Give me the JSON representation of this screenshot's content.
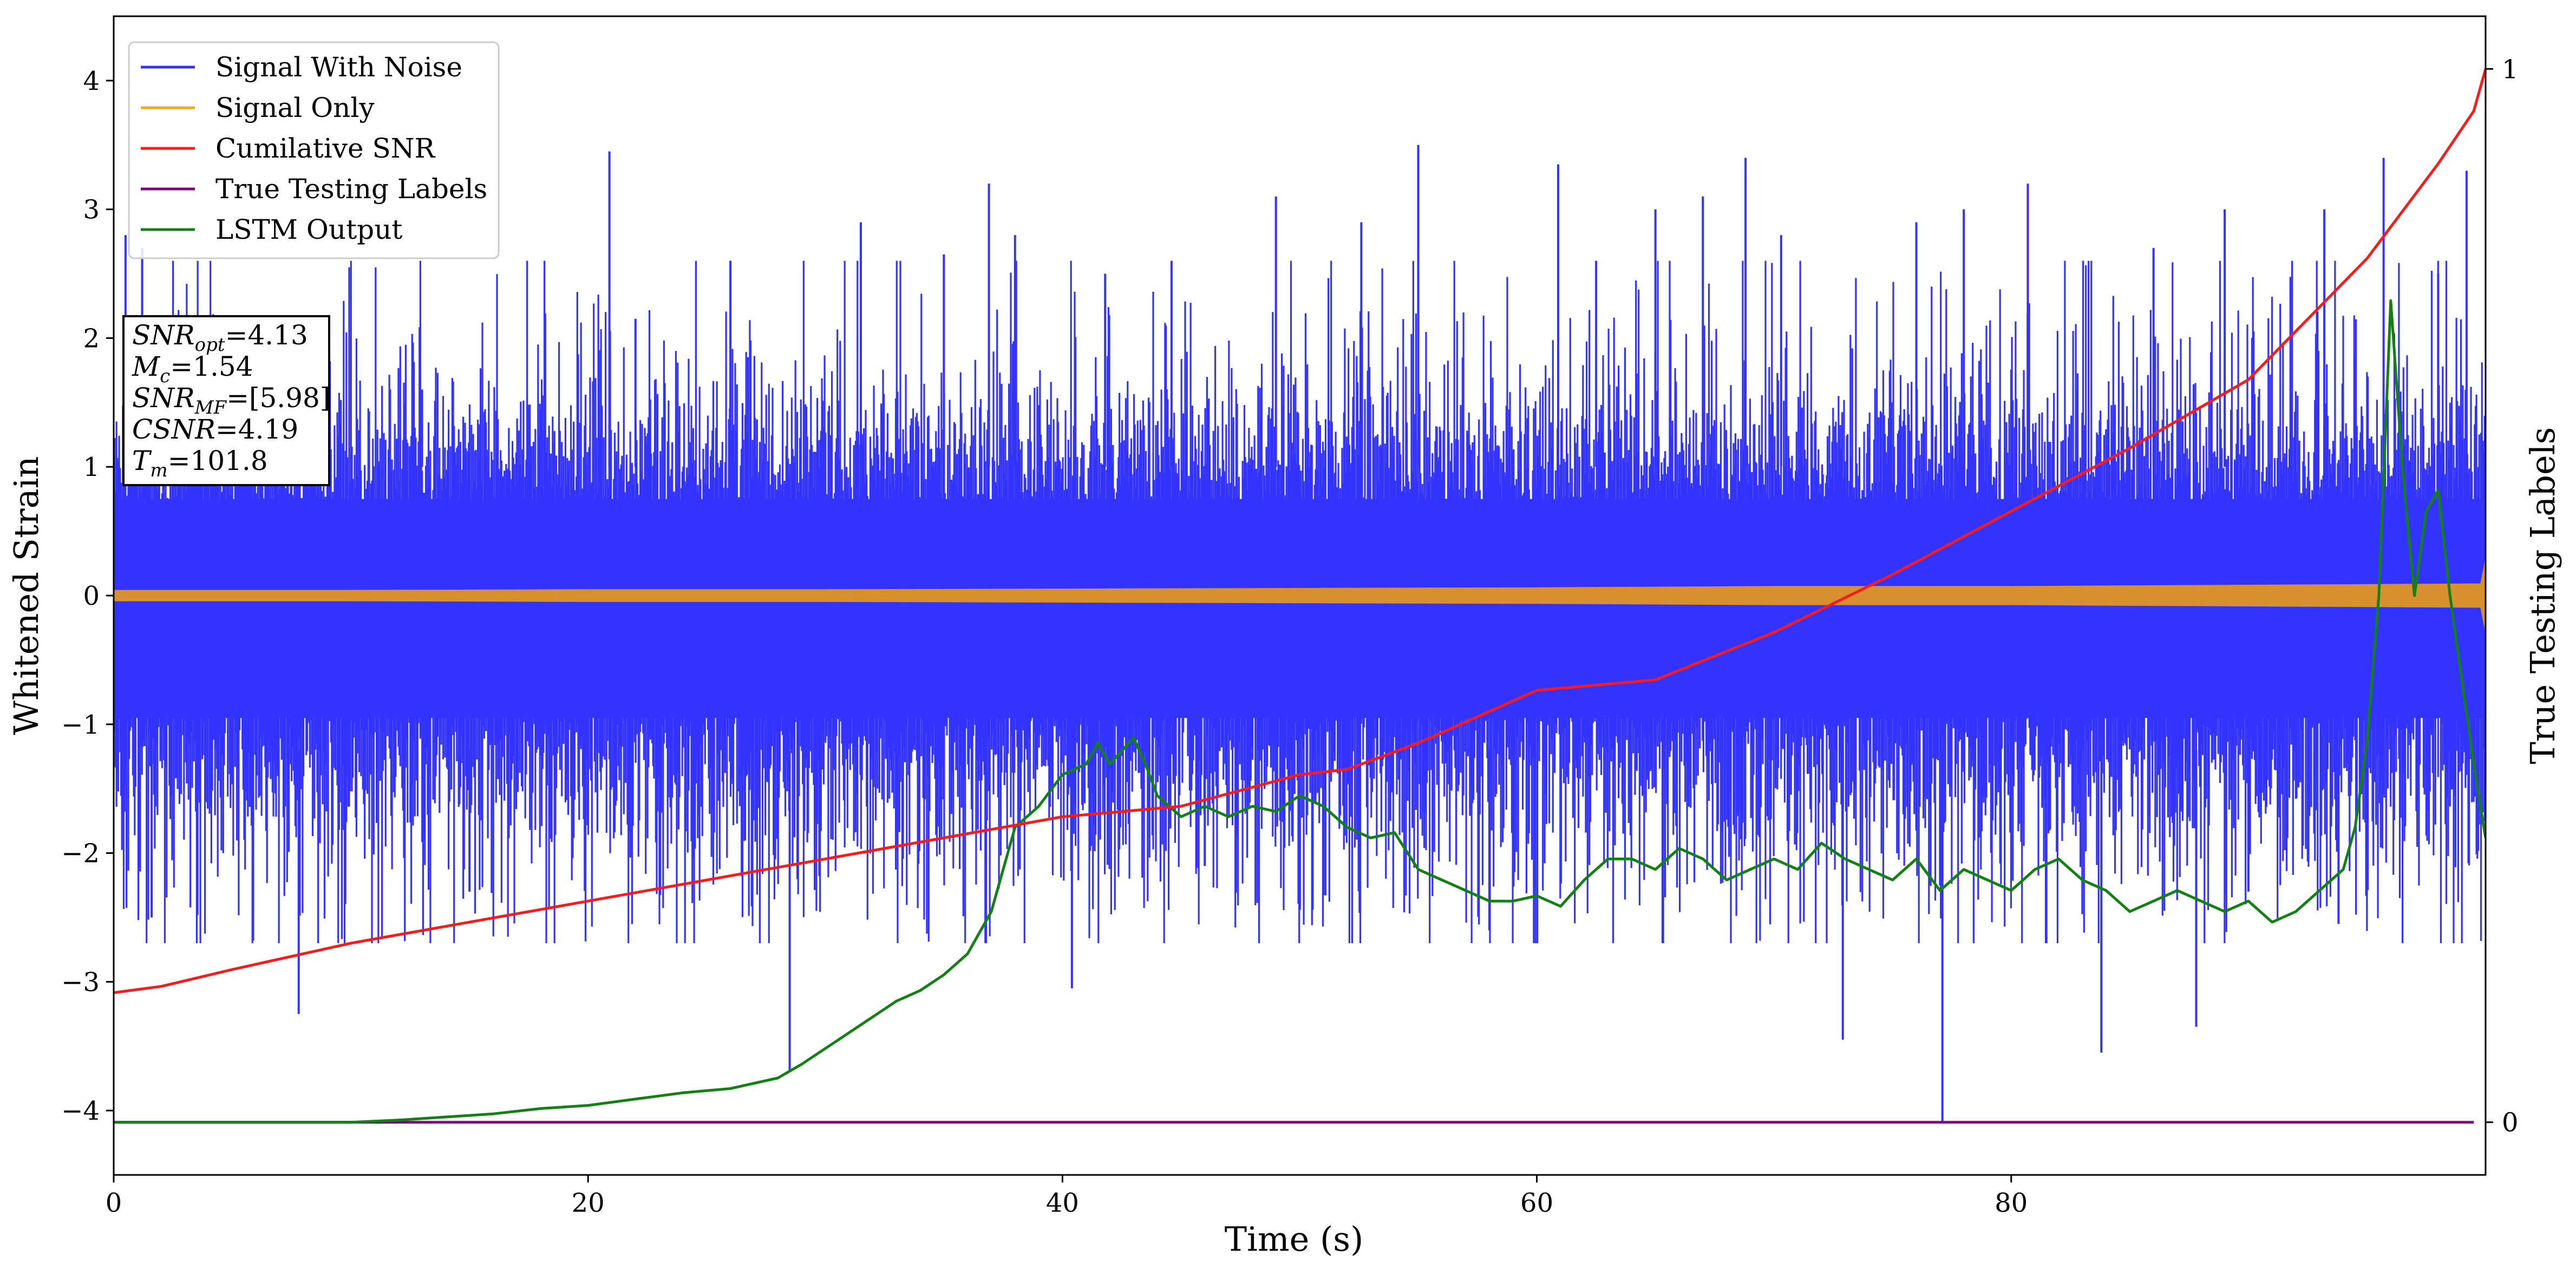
{
  "colors": {
    "noise": "#3333ff",
    "signal": "#d88f2e",
    "csnr": "#ff1a1a",
    "labels": "#800080",
    "lstm": "#138013"
  },
  "chart_data": {
    "type": "line",
    "xlabel": "Time (s)",
    "ylabel": "Whitened Strain",
    "y2label": "True Testing Labels",
    "xlim": [
      0,
      100
    ],
    "ylim": [
      -4.5,
      4.5
    ],
    "y2lim": [
      -0.05,
      1.05
    ],
    "xticks": [
      0,
      20,
      40,
      60,
      80
    ],
    "yticks": [
      -4,
      -3,
      -2,
      -1,
      0,
      1,
      2,
      3,
      4
    ],
    "y2ticks": [
      0,
      1
    ],
    "grid": false,
    "legend_position": "top-left",
    "legend": [
      {
        "name": "Signal With Noise",
        "color": "#3333ff"
      },
      {
        "name": "Signal Only",
        "color": "#f5a623"
      },
      {
        "name": "Cumilative SNR",
        "color": "#ff1a1a"
      },
      {
        "name": "True Testing Labels",
        "color": "#800080"
      },
      {
        "name": "LSTM Output",
        "color": "#138013"
      }
    ],
    "series": [
      {
        "name": "Signal With Noise",
        "axis": "left",
        "style": "dense noise band",
        "envelope": {
          "typical_upper": 1.2,
          "typical_lower": -1.5,
          "max": 3.5,
          "min": -4.1
        },
        "spikes": [
          [
            0.5,
            2.8
          ],
          [
            1.2,
            2.7
          ],
          [
            1.6,
            -2.5
          ],
          [
            7.8,
            -3.25
          ],
          [
            13.0,
            1.6
          ],
          [
            15.0,
            -2.3
          ],
          [
            20.9,
            3.45
          ],
          [
            22.0,
            2.15
          ],
          [
            26.0,
            2.6
          ],
          [
            28.5,
            -3.7
          ],
          [
            31.5,
            2.9
          ],
          [
            35.0,
            2.65
          ],
          [
            36.9,
            3.2
          ],
          [
            38.0,
            2.8
          ],
          [
            40.4,
            -3.05
          ],
          [
            41.8,
            2.5
          ],
          [
            44.6,
            2.6
          ],
          [
            46.0,
            -2.1
          ],
          [
            49.0,
            3.1
          ],
          [
            52.6,
            2.9
          ],
          [
            55.0,
            3.5
          ],
          [
            58.0,
            -2.6
          ],
          [
            60.9,
            3.35
          ],
          [
            62.5,
            2.6
          ],
          [
            65.0,
            3.0
          ],
          [
            67.0,
            3.1
          ],
          [
            68.8,
            3.4
          ],
          [
            70.3,
            2.8
          ],
          [
            72.9,
            -3.45
          ],
          [
            76.0,
            2.9
          ],
          [
            77.1,
            -4.1
          ],
          [
            78.0,
            3.0
          ],
          [
            80.7,
            3.2
          ],
          [
            83.8,
            -3.55
          ],
          [
            86.0,
            2.7
          ],
          [
            87.8,
            -3.35
          ],
          [
            89.0,
            3.0
          ],
          [
            90.0,
            -2.3
          ],
          [
            93.2,
            3.0
          ],
          [
            93.8,
            -2.55
          ],
          [
            95.7,
            3.4
          ],
          [
            98.0,
            2.5
          ],
          [
            99.2,
            3.3
          ]
        ]
      },
      {
        "name": "Signal Only",
        "axis": "left",
        "style": "thin band around zero",
        "x": [
          0,
          10,
          20,
          30,
          40,
          50,
          60,
          70,
          80,
          90,
          99.8,
          100
        ],
        "amplitude": [
          0.04,
          0.04,
          0.045,
          0.045,
          0.05,
          0.055,
          0.06,
          0.07,
          0.07,
          0.08,
          0.09,
          0.28
        ]
      },
      {
        "name": "Cumilative SNR",
        "axis": "right",
        "x": [
          0,
          2,
          5,
          10,
          15,
          20,
          25,
          30,
          35,
          40,
          45,
          50,
          52,
          55,
          60,
          65,
          70,
          75,
          80,
          85,
          90,
          95,
          98,
          99.5,
          100
        ],
        "y": [
          0.123,
          0.129,
          0.145,
          0.17,
          0.19,
          0.21,
          0.23,
          0.25,
          0.27,
          0.29,
          0.3,
          0.33,
          0.335,
          0.36,
          0.41,
          0.42,
          0.465,
          0.52,
          0.58,
          0.64,
          0.705,
          0.82,
          0.91,
          0.96,
          1.0
        ]
      },
      {
        "name": "True Testing Labels",
        "axis": "right",
        "x": [
          0,
          99.5
        ],
        "y": [
          0,
          0
        ]
      },
      {
        "name": "LSTM Output",
        "axis": "right",
        "x": [
          0,
          5,
          10,
          12,
          14,
          16,
          18,
          20,
          22,
          24,
          26,
          28,
          29,
          30,
          31,
          32,
          33,
          34,
          35,
          36,
          37,
          37.5,
          38,
          39,
          40,
          41,
          41.5,
          42,
          43,
          43.5,
          44,
          45,
          46,
          47,
          48,
          49,
          50,
          51,
          52,
          53,
          54,
          55,
          56,
          57,
          58,
          59,
          60,
          61,
          62,
          63,
          64,
          65,
          66,
          67,
          68,
          69,
          70,
          71,
          72,
          73,
          74,
          75,
          76,
          77,
          78,
          79,
          80,
          81,
          82,
          83,
          84,
          85,
          86,
          87,
          88,
          89,
          90,
          91,
          92,
          93,
          94,
          94.5,
          95,
          95.5,
          96,
          96.5,
          97,
          97.5,
          98,
          98.5,
          99,
          99.5,
          100
        ],
        "y": [
          0,
          0,
          0,
          0.002,
          0.005,
          0.008,
          0.013,
          0.016,
          0.022,
          0.028,
          0.032,
          0.042,
          0.055,
          0.07,
          0.085,
          0.1,
          0.115,
          0.125,
          0.14,
          0.16,
          0.2,
          0.24,
          0.28,
          0.3,
          0.33,
          0.34,
          0.36,
          0.34,
          0.365,
          0.34,
          0.31,
          0.29,
          0.3,
          0.29,
          0.3,
          0.295,
          0.31,
          0.3,
          0.28,
          0.27,
          0.275,
          0.24,
          0.23,
          0.22,
          0.21,
          0.21,
          0.215,
          0.205,
          0.23,
          0.25,
          0.25,
          0.24,
          0.26,
          0.25,
          0.23,
          0.24,
          0.25,
          0.24,
          0.265,
          0.25,
          0.24,
          0.23,
          0.25,
          0.22,
          0.24,
          0.23,
          0.22,
          0.24,
          0.25,
          0.23,
          0.22,
          0.2,
          0.21,
          0.22,
          0.21,
          0.2,
          0.21,
          0.19,
          0.2,
          0.22,
          0.24,
          0.28,
          0.36,
          0.5,
          0.78,
          0.62,
          0.5,
          0.58,
          0.6,
          0.5,
          0.42,
          0.34,
          0.27
        ]
      }
    ],
    "annotation_box": {
      "lines": [
        {
          "base": "SNR",
          "sub": "opt",
          "value": "=4.13"
        },
        {
          "base": "M",
          "sub": "c",
          "value": "=1.54"
        },
        {
          "base": "SNR",
          "sub": "MF",
          "value": "=[5.98]"
        },
        {
          "base": "CSNR",
          "sub": "",
          "value": "=4.19"
        },
        {
          "base": "T",
          "sub": "m",
          "value": "=101.8"
        }
      ]
    }
  }
}
